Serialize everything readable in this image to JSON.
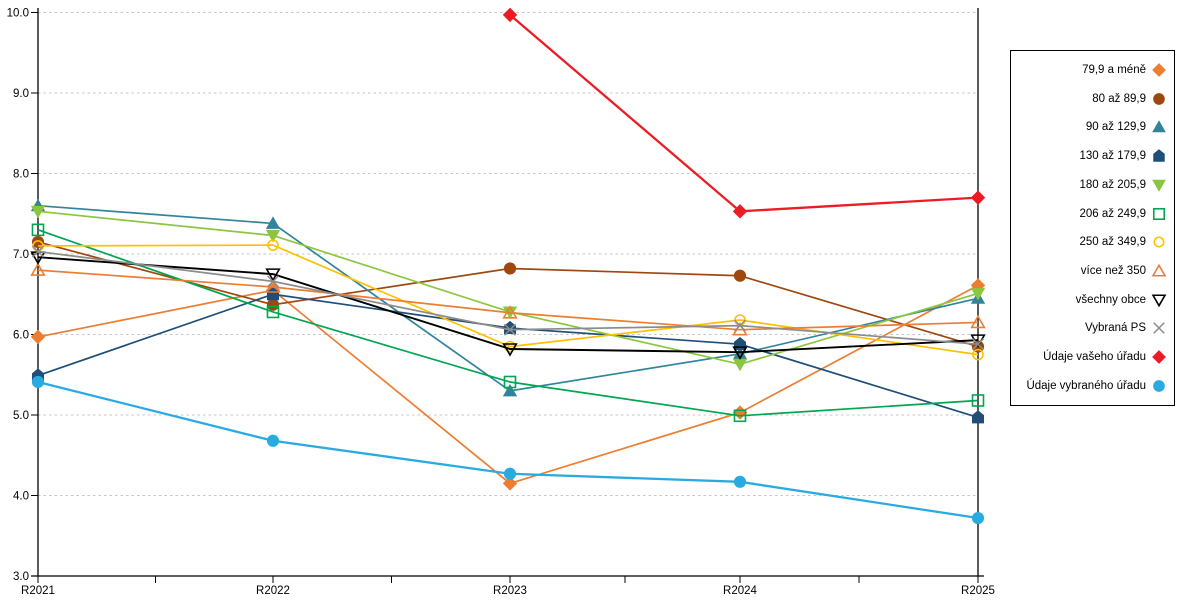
{
  "chart_data": {
    "type": "line",
    "title": "",
    "xlabel": "",
    "ylabel": "",
    "categories": [
      "R2021",
      "R2022",
      "R2023",
      "R2024",
      "R2025"
    ],
    "y_ticks": [
      "10.0",
      "9.0",
      "8.0",
      "7.0",
      "6.0",
      "5.0",
      "4.0",
      "3.0"
    ],
    "ylim": [
      3.0,
      10.0
    ],
    "grid": "horizontal dashed gridlines at each 1.0",
    "legend_position": "right",
    "axis_color": "#000000",
    "grid_color": "#C6C6C6",
    "series": [
      {
        "name": "79,9 a méně",
        "color": "#ED7D31",
        "marker": "diamond",
        "filled": true,
        "values": [
          5.97,
          6.55,
          4.15,
          5.03,
          6.61
        ]
      },
      {
        "name": "80 až 89,9",
        "color": "#9E480E",
        "marker": "circle",
        "filled": true,
        "values": [
          7.15,
          6.37,
          6.82,
          6.73,
          5.85
        ]
      },
      {
        "name": "90 až 129,9",
        "color": "#31849B",
        "marker": "triangle-up",
        "filled": true,
        "values": [
          7.6,
          7.38,
          5.3,
          5.76,
          6.45
        ]
      },
      {
        "name": "130 až 179,9",
        "color": "#1F4E79",
        "marker": "pentagon",
        "filled": true,
        "values": [
          5.49,
          6.5,
          6.08,
          5.88,
          4.97
        ]
      },
      {
        "name": "180 až 205,9",
        "color": "#8CC63F",
        "marker": "triangle-down",
        "filled": true,
        "values": [
          7.53,
          7.23,
          6.28,
          5.63,
          6.51
        ]
      },
      {
        "name": "206 až 249,9",
        "color": "#00A651",
        "marker": "square",
        "filled": false,
        "values": [
          7.3,
          6.28,
          5.41,
          4.99,
          5.18
        ]
      },
      {
        "name": "250 až 349,9",
        "color": "#FFC000",
        "marker": "circle",
        "filled": false,
        "values": [
          7.1,
          7.11,
          5.85,
          6.18,
          5.75
        ]
      },
      {
        "name": "více než 350",
        "color": "#ED7D31",
        "marker": "triangle-up",
        "filled": false,
        "values": [
          6.8,
          6.59,
          6.27,
          6.06,
          6.15
        ]
      },
      {
        "name": "všechny obce",
        "color": "#000000",
        "marker": "triangle-down",
        "filled": false,
        "values": [
          6.96,
          6.75,
          5.82,
          5.78,
          5.93
        ]
      },
      {
        "name": "Vybraná PS",
        "color": "#8C8C8C",
        "marker": "cross",
        "filled": false,
        "values": [
          7.03,
          6.66,
          6.06,
          6.11,
          5.88
        ]
      },
      {
        "name": "Údaje vašeho úřadu",
        "color": "#EC1C24",
        "marker": "diamond",
        "filled": true,
        "values": [
          null,
          null,
          9.97,
          7.53,
          7.7
        ]
      },
      {
        "name": "Údaje vybraného úřadu",
        "color": "#29ABE2",
        "marker": "circle",
        "filled": true,
        "values": [
          5.41,
          4.68,
          4.27,
          4.17,
          3.72
        ]
      }
    ]
  }
}
